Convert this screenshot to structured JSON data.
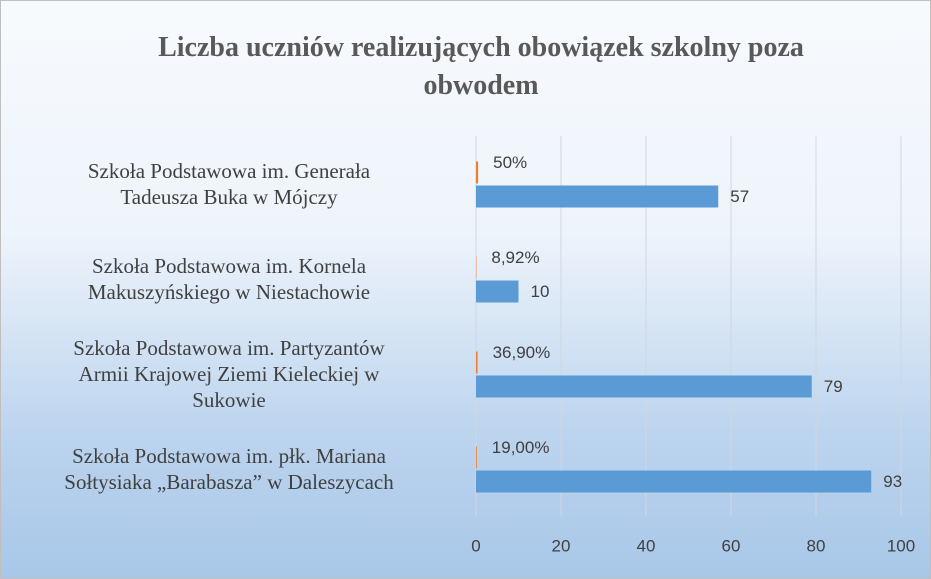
{
  "chart_data": {
    "type": "bar",
    "orientation": "horizontal",
    "title": "Liczba uczniów realizujących obowiązek szkolny poza obwodem",
    "categories": [
      "Szkoła Podstawowa im. Generała\nTadeusza Buka w Mójczy",
      "Szkoła Podstawowa im. Kornela\nMakuszyńskiego w Niestachowie",
      "Szkoła Podstawowa im. Partyzantów\nArmii Krajowej Ziemi Kieleckiej w\nSukowie",
      "Szkoła Podstawowa im. płk. Mariana\nSołtysiaka „Barabasza” w Daleszycach"
    ],
    "series": [
      {
        "color": "#ed7d31",
        "values": [
          0.5,
          0.0892,
          0.369,
          0.19
        ],
        "value_labels": [
          "50%",
          "8,92%",
          "36,90%",
          "19,00%"
        ]
      },
      {
        "color": "#5b9bd5",
        "values": [
          57,
          10,
          79,
          93
        ]
      }
    ],
    "xlim": [
      0,
      100
    ],
    "xticks": [
      0,
      20,
      40,
      60,
      80,
      100
    ],
    "grid": true
  }
}
